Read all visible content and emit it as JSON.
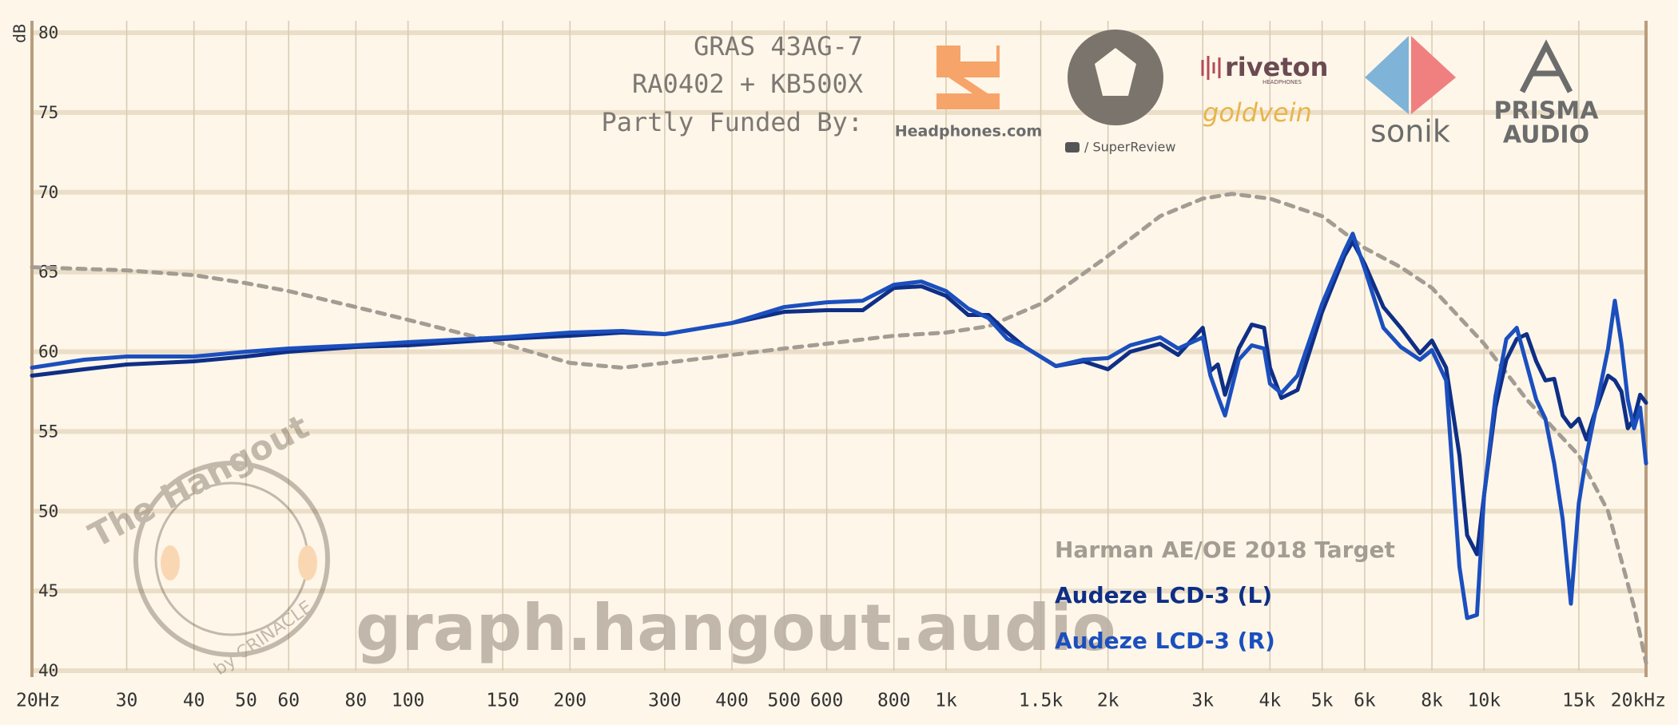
{
  "chart_data": {
    "type": "line",
    "y_label": "dB",
    "header_lines": [
      "GRAS 43AG-7",
      "RA0402 + KB500X",
      "Partly Funded By:"
    ],
    "sponsors": [
      "Headphones.com",
      "/ SuperReview",
      "riveton",
      "HEADPHONES",
      "goldvein",
      "sonik",
      "PRISMA",
      "AUDIO"
    ],
    "watermark": "graph.hangout.audio",
    "badge": [
      "The Hangout",
      "by CRINACLE"
    ],
    "x_scale": "log",
    "xlim": [
      20,
      20000
    ],
    "ylim": [
      40,
      80
    ],
    "grid": true,
    "xticks": [
      {
        "value": 20,
        "label": "20Hz"
      },
      30,
      40,
      50,
      60,
      80,
      100,
      150,
      200,
      300,
      400,
      500,
      600,
      800,
      {
        "value": 1000,
        "label": "1k"
      },
      {
        "value": 1500,
        "label": "1.5k"
      },
      {
        "value": 2000,
        "label": "2k"
      },
      {
        "value": 3000,
        "label": "3k"
      },
      {
        "value": 4000,
        "label": "4k"
      },
      {
        "value": 5000,
        "label": "5k"
      },
      {
        "value": 6000,
        "label": "6k"
      },
      {
        "value": 8000,
        "label": "8k"
      },
      {
        "value": 10000,
        "label": "10k"
      },
      {
        "value": 15000,
        "label": "15k"
      },
      {
        "value": 20000,
        "label": "20kHz"
      }
    ],
    "yticks": [
      40,
      45,
      50,
      55,
      60,
      65,
      70,
      75,
      80
    ],
    "x": [
      20,
      25,
      30,
      40,
      50,
      60,
      80,
      100,
      150,
      200,
      250,
      300,
      400,
      500,
      600,
      700,
      800,
      900,
      1000,
      1100,
      1200,
      1300,
      1400,
      1600,
      1800,
      2000,
      2200,
      2500,
      2700,
      3000,
      3100,
      3200,
      3300,
      3500,
      3700,
      3900,
      4000,
      4200,
      4500,
      5000,
      5500,
      5700,
      6000,
      6500,
      7000,
      7600,
      8000,
      8500,
      9000,
      9300,
      9700,
      10000,
      10500,
      11000,
      11500,
      12000,
      12500,
      13000,
      13500,
      14000,
      14500,
      15000,
      15500,
      16000,
      17000,
      17500,
      18000,
      18500,
      19000,
      19500,
      20000
    ],
    "series": [
      {
        "name": "Harman AE/OE 2018 Target",
        "color": "#a39c93",
        "dashed": true,
        "x": [
          20,
          30,
          40,
          50,
          60,
          80,
          100,
          150,
          200,
          250,
          300,
          400,
          500,
          600,
          800,
          1000,
          1200,
          1500,
          2000,
          2500,
          3000,
          3400,
          4000,
          5000,
          6000,
          7000,
          8000,
          10000,
          12000,
          15000,
          17000,
          19000,
          20000
        ],
        "values": [
          65.3,
          65.1,
          64.8,
          64.3,
          63.8,
          62.8,
          62,
          60.5,
          59.3,
          59.0,
          59.3,
          59.8,
          60.2,
          60.5,
          61,
          61.2,
          61.6,
          63,
          66,
          68.5,
          69.6,
          69.9,
          69.6,
          68.5,
          66.5,
          65.3,
          64,
          60.5,
          57,
          53.5,
          50,
          44,
          40.5
        ]
      },
      {
        "name": "Audeze LCD-3 (L)",
        "color": "#0f2f86",
        "dashed": false,
        "values": [
          58.5,
          58.9,
          59.2,
          59.4,
          59.7,
          60,
          60.3,
          60.4,
          60.8,
          61,
          61.2,
          61.1,
          61.8,
          62.5,
          62.6,
          62.6,
          64,
          64.1,
          63.5,
          62.3,
          62.3,
          61.2,
          60.3,
          59.1,
          59.4,
          58.9,
          60,
          60.5,
          59.8,
          61.5,
          58.8,
          59.2,
          57.3,
          60.2,
          61.7,
          61.5,
          59,
          57.1,
          57.6,
          62.5,
          66,
          66.9,
          65.5,
          62.8,
          61.5,
          59.9,
          60.7,
          59,
          53.5,
          48.5,
          47.3,
          51,
          56.5,
          59.5,
          60.8,
          61.1,
          59.4,
          58.2,
          58.3,
          56,
          55.3,
          55.8,
          54.5,
          56,
          58.5,
          58.2,
          57.5,
          55.2,
          55.8,
          57.3,
          56.8
        ]
      },
      {
        "name": "Audeze LCD-3 (R)",
        "color": "#1b4fbe",
        "dashed": false,
        "values": [
          59,
          59.5,
          59.7,
          59.7,
          60,
          60.2,
          60.4,
          60.6,
          60.9,
          61.2,
          61.3,
          61.1,
          61.8,
          62.8,
          63.1,
          63.2,
          64.2,
          64.4,
          63.8,
          62.7,
          62.1,
          60.8,
          60.3,
          59.1,
          59.5,
          59.6,
          60.4,
          60.9,
          60.2,
          60.9,
          58.5,
          57.2,
          56,
          59.5,
          60.4,
          60.2,
          58,
          57.4,
          58.5,
          63,
          66.3,
          67.4,
          65.2,
          61.5,
          60.3,
          59.5,
          60.1,
          58.2,
          46.5,
          43.3,
          43.5,
          51,
          57.2,
          60.8,
          61.5,
          59.2,
          57,
          55.8,
          53,
          49.5,
          44.2,
          50.5,
          53.5,
          55.8,
          60.2,
          63.2,
          60.5,
          57,
          55.2,
          56.5,
          53
        ]
      }
    ]
  }
}
